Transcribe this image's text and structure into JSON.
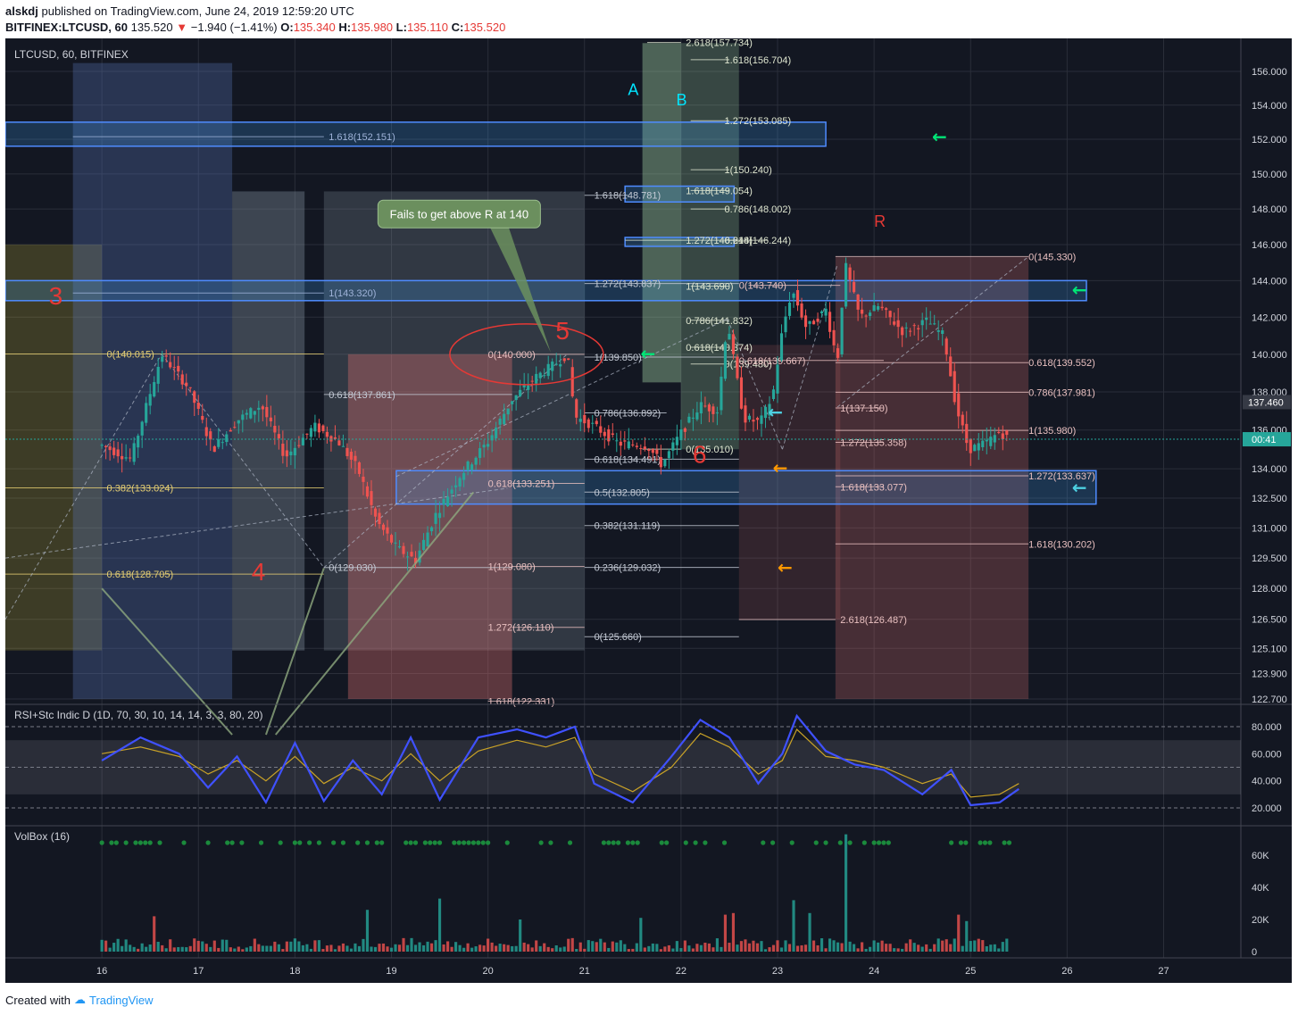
{
  "header": {
    "user": "alskdj",
    "published": "published on TradingView.com, June 24, 2019 12:59:20 UTC",
    "symbol": "BITFINEX:LTCUSD, 60",
    "last": "135.520",
    "change": "−1.940 (−1.41%)",
    "o_label": "O:",
    "o": "135.340",
    "h_label": "H:",
    "h": "135.980",
    "l_label": "L:",
    "l": "135.110",
    "c_label": "C:",
    "c": "135.520"
  },
  "footer": {
    "created_with": "Created with",
    "brand": "TradingView"
  },
  "chart_data": {
    "type": "candlestick",
    "title": "LTCUSD, 60, BITFINEX",
    "colors": {
      "up": "#26a69a",
      "down": "#ef5350",
      "bg": "#131722",
      "grid": "#2a2e39",
      "rsi": "#3f51ff",
      "stc": "#c9a227"
    },
    "x_labels": [
      "16",
      "17",
      "18",
      "19",
      "20",
      "21",
      "22",
      "23",
      "24",
      "25",
      "26",
      "27"
    ],
    "price_axis": {
      "ticks": [
        156.0,
        154.0,
        152.0,
        150.0,
        148.0,
        146.0,
        144.0,
        142.0,
        140.0,
        138.0,
        136.0,
        134.0,
        132.5,
        131.0,
        129.5,
        128.0,
        126.5,
        125.1,
        123.9,
        122.7
      ],
      "tick_labels": [
        "156.000",
        "154.000",
        "152.000",
        "150.000",
        "148.000",
        "146.000",
        "144.000",
        "142.000",
        "140.000",
        "138.000",
        "136.000",
        "134.000",
        "132.500",
        "131.000",
        "129.500",
        "128.000",
        "126.500",
        "125.100",
        "123.900",
        "122.700"
      ],
      "current_price": "135.520",
      "countdown": "00:41",
      "marker": "137.460",
      "scale": "log"
    },
    "price_path": [
      [
        0.0,
        135.2
      ],
      [
        0.3,
        134.5
      ],
      [
        0.62,
        140.0
      ],
      [
        0.9,
        138.2
      ],
      [
        1.15,
        135.0
      ],
      [
        1.4,
        136.5
      ],
      [
        1.65,
        137.3
      ],
      [
        1.9,
        134.6
      ],
      [
        2.2,
        136.2
      ],
      [
        2.45,
        135.4
      ],
      [
        2.65,
        134.0
      ],
      [
        2.85,
        131.3
      ],
      [
        3.05,
        130.0
      ],
      [
        3.25,
        129.4
      ],
      [
        3.45,
        131.6
      ],
      [
        3.7,
        133.6
      ],
      [
        4.0,
        135.4
      ],
      [
        4.25,
        137.6
      ],
      [
        4.5,
        138.8
      ],
      [
        4.7,
        139.5
      ],
      [
        4.82,
        140.0
      ],
      [
        4.9,
        136.7
      ],
      [
        5.1,
        136.2
      ],
      [
        5.35,
        135.3
      ],
      [
        5.65,
        135.2
      ],
      [
        5.8,
        134.2
      ],
      [
        5.98,
        135.7
      ],
      [
        6.2,
        137.3
      ],
      [
        6.38,
        137.0
      ],
      [
        6.48,
        141.9
      ],
      [
        6.55,
        139.5
      ],
      [
        6.65,
        136.6
      ],
      [
        6.82,
        136.4
      ],
      [
        6.95,
        137.8
      ],
      [
        7.05,
        141.3
      ],
      [
        7.15,
        143.5
      ],
      [
        7.3,
        141.4
      ],
      [
        7.5,
        142.4
      ],
      [
        7.62,
        139.6
      ],
      [
        7.7,
        144.9
      ],
      [
        7.85,
        142.0
      ],
      [
        8.05,
        142.6
      ],
      [
        8.3,
        141.2
      ],
      [
        8.55,
        141.8
      ],
      [
        8.72,
        141.0
      ],
      [
        8.85,
        137.2
      ],
      [
        8.98,
        135.0
      ],
      [
        9.15,
        135.3
      ],
      [
        9.3,
        135.9
      ],
      [
        9.4,
        135.5
      ]
    ],
    "x_domain": [
      -1.0,
      11.8
    ],
    "fib_levels": [
      {
        "label": "1.618(152.151)"
      },
      {
        "label": "1(143.320)"
      },
      {
        "label": "0(140.015)"
      },
      {
        "label": "0.382(133.024)"
      },
      {
        "label": "0.618(128.705)"
      },
      {
        "label": "0.618(137.861)"
      },
      {
        "label": "0(129.030)"
      },
      {
        "label": "0(140.000)"
      },
      {
        "label": "0.618(133.251)"
      },
      {
        "label": "1(129.080)"
      },
      {
        "label": "1.272(126.110)"
      },
      {
        "label": "1.618(148.781)"
      },
      {
        "label": "1.272(143.837)"
      },
      {
        "label": "1(139.850)"
      },
      {
        "label": "0.786(136.892)"
      },
      {
        "label": "0.618(134.491)"
      },
      {
        "label": "0.5(132.805)"
      },
      {
        "label": "0.382(131.119)"
      },
      {
        "label": "0.236(129.032)"
      },
      {
        "label": "0(125.660)"
      },
      {
        "label": "2.618(157.734)"
      },
      {
        "label": "1.618(156.704)"
      },
      {
        "label": "1.272(153.085)"
      },
      {
        "label": "1(150.240)"
      },
      {
        "label": "1.618(149.054)"
      },
      {
        "label": "0.786(148.002)"
      },
      {
        "label": "1.272(146.244)"
      },
      {
        "label": "0.618(146.244)"
      },
      {
        "label": "1(143.690)"
      },
      {
        "label": "0.786(141.832)"
      },
      {
        "label": "0.618(140.374)"
      },
      {
        "label": "0(139.480)"
      },
      {
        "label": "0(135.010)"
      },
      {
        "label": "0(143.740)"
      },
      {
        "label": "0.618(139.667)"
      },
      {
        "label": "1(137.150)"
      },
      {
        "label": "1.272(135.358)"
      },
      {
        "label": "1.618(133.077)"
      },
      {
        "label": "2.618(126.487)"
      },
      {
        "label": "0(145.330)"
      },
      {
        "label": "0.618(139.552)"
      },
      {
        "label": "0.786(137.981)"
      },
      {
        "label": "1(135.980)"
      },
      {
        "label": "1.272(133.637)"
      },
      {
        "label": "1.618(130.202)"
      },
      {
        "label": "1.618(122.331)"
      }
    ],
    "annotations": {
      "callout": "Fails to get above R at 140",
      "wave_labels": [
        "3",
        "4",
        "5",
        "6",
        "A",
        "B",
        "R"
      ]
    },
    "rsi_panel": {
      "title": "RSI+Stc Indic D (1D, 70, 30, 10, 14, 14, 3, 3, 80, 20)",
      "ticks": [
        80,
        60,
        40,
        20
      ],
      "tick_labels": [
        "80.000",
        "60.000",
        "40.000",
        "20.000"
      ],
      "rsi": [
        [
          0,
          55
        ],
        [
          0.4,
          72
        ],
        [
          0.8,
          60
        ],
        [
          1.1,
          35
        ],
        [
          1.4,
          58
        ],
        [
          1.7,
          24
        ],
        [
          2.0,
          68
        ],
        [
          2.3,
          25
        ],
        [
          2.6,
          55
        ],
        [
          2.9,
          30
        ],
        [
          3.2,
          72
        ],
        [
          3.5,
          26
        ],
        [
          3.9,
          72
        ],
        [
          4.3,
          78
        ],
        [
          4.6,
          72
        ],
        [
          4.9,
          80
        ],
        [
          5.1,
          38
        ],
        [
          5.5,
          24
        ],
        [
          5.9,
          58
        ],
        [
          6.2,
          85
        ],
        [
          6.5,
          72
        ],
        [
          6.8,
          38
        ],
        [
          7.05,
          60
        ],
        [
          7.2,
          88
        ],
        [
          7.5,
          62
        ],
        [
          7.8,
          52
        ],
        [
          8.1,
          48
        ],
        [
          8.5,
          30
        ],
        [
          8.8,
          48
        ],
        [
          9.0,
          22
        ],
        [
          9.3,
          24
        ],
        [
          9.5,
          34
        ]
      ],
      "stc": [
        [
          0,
          60
        ],
        [
          0.4,
          65
        ],
        [
          0.8,
          58
        ],
        [
          1.1,
          45
        ],
        [
          1.4,
          55
        ],
        [
          1.7,
          40
        ],
        [
          2.0,
          58
        ],
        [
          2.3,
          38
        ],
        [
          2.6,
          50
        ],
        [
          2.9,
          40
        ],
        [
          3.2,
          60
        ],
        [
          3.5,
          40
        ],
        [
          3.9,
          62
        ],
        [
          4.3,
          70
        ],
        [
          4.6,
          65
        ],
        [
          4.9,
          72
        ],
        [
          5.1,
          45
        ],
        [
          5.5,
          32
        ],
        [
          5.9,
          50
        ],
        [
          6.2,
          75
        ],
        [
          6.5,
          65
        ],
        [
          6.8,
          45
        ],
        [
          7.05,
          55
        ],
        [
          7.2,
          78
        ],
        [
          7.5,
          58
        ],
        [
          7.8,
          55
        ],
        [
          8.1,
          50
        ],
        [
          8.5,
          38
        ],
        [
          8.8,
          45
        ],
        [
          9.0,
          28
        ],
        [
          9.3,
          30
        ],
        [
          9.5,
          38
        ]
      ]
    },
    "volume_panel": {
      "title": "VolBox (16)",
      "ticks": [
        60000,
        40000,
        20000,
        0
      ],
      "tick_labels": [
        "60K",
        "40K",
        "20K",
        "0"
      ],
      "spikes": [
        [
          3.5,
          33000
        ],
        [
          2.75,
          26000
        ],
        [
          7.15,
          32000
        ],
        [
          7.35,
          24000
        ],
        [
          7.72,
          73000
        ],
        [
          8.87,
          23000
        ],
        [
          8.95,
          19000
        ],
        [
          0.55,
          22000
        ],
        [
          4.35,
          20000
        ],
        [
          5.6,
          21000
        ],
        [
          6.45,
          23000
        ],
        [
          6.55,
          24000
        ]
      ]
    }
  }
}
